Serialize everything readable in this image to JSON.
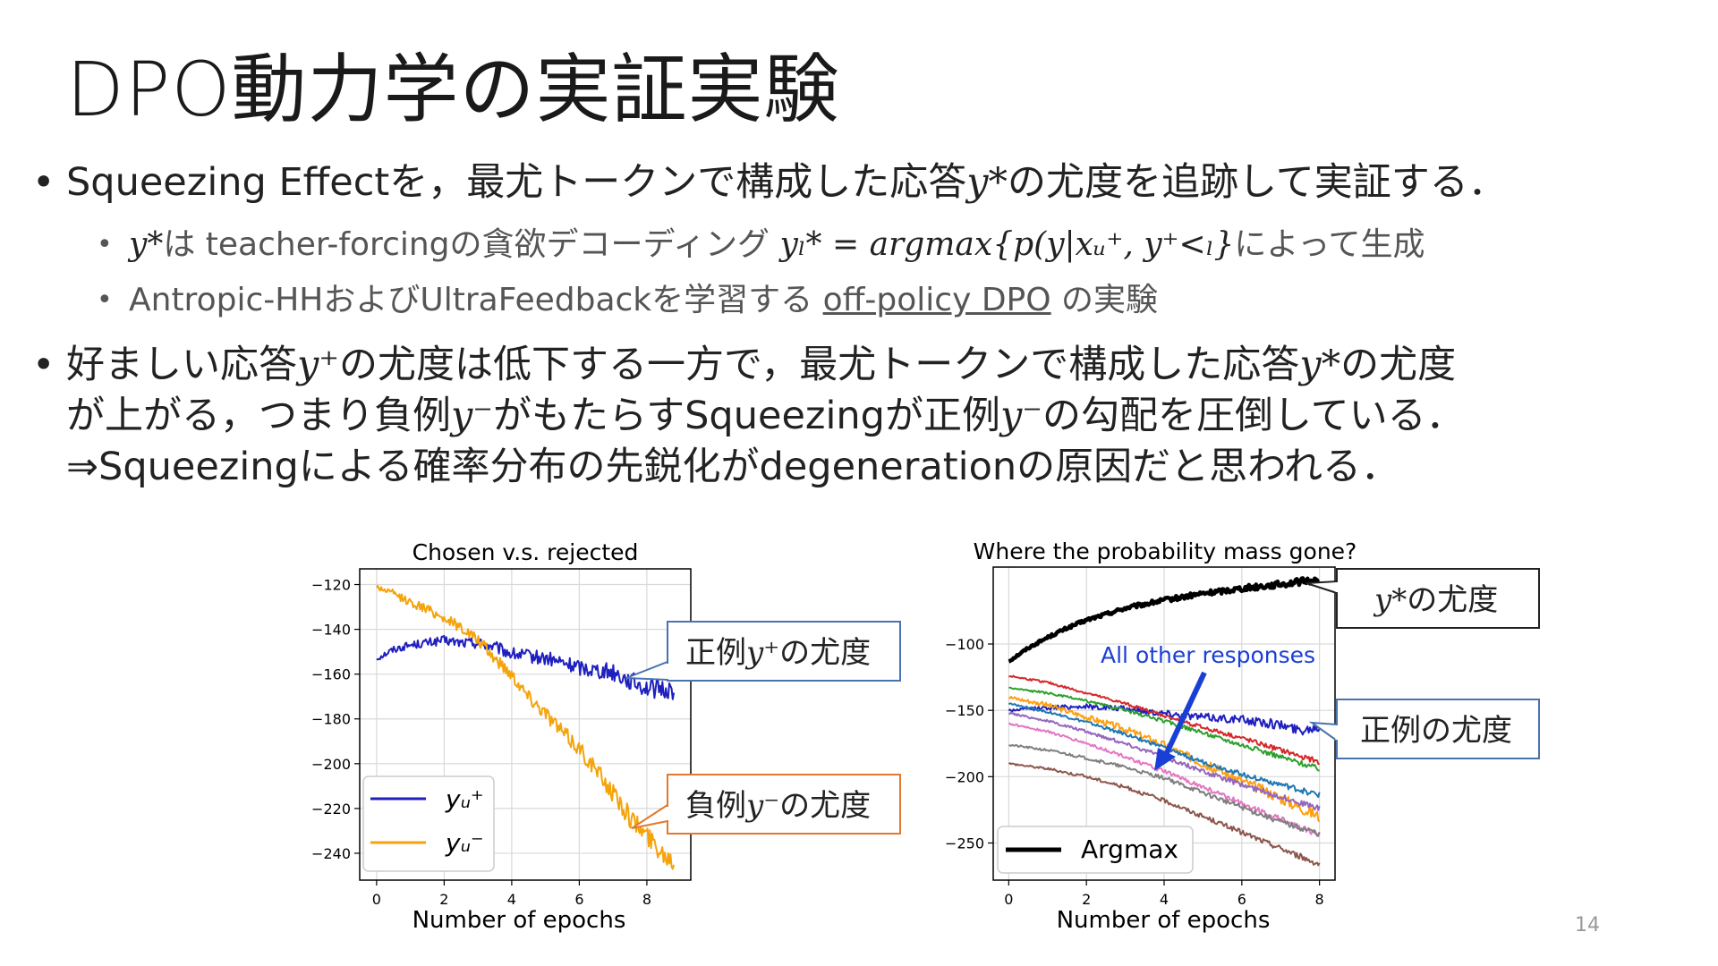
{
  "slide": {
    "title": "DPO動力学の実証実験",
    "bullet1": {
      "dot": "•",
      "text_a": "Squeezing Effectを，最尤トークンで構成した応答",
      "math": "y*",
      "text_b": "の尤度を追跡して実証する．"
    },
    "sub1": {
      "dot": "•",
      "math_a": "y*",
      "text_a": "は teacher-forcingの貪欲デコーディング ",
      "math_b": "yₗ* = argmax{p(y|xᵤ⁺, y⁺<ₗ}",
      "text_b": "によって生成"
    },
    "sub2": {
      "dot": "•",
      "text_a": "Antropic-HHおよびUltraFeedbackを学習する ",
      "link": "off-policy DPO",
      "text_b": " の実験"
    },
    "bullet2": {
      "dot": "•",
      "line1_a": "好ましい応答",
      "line1_math": "y⁺",
      "line1_b": "の尤度は低下する一方で，最尤トークンで構成した応答",
      "line1_math2": "y*",
      "line1_c": "の尤度",
      "line2_a": "が上がる，つまり負例",
      "line2_math": "y⁻",
      "line2_b": "がもたらすSqueezingが正例",
      "line2_math2": "y⁻",
      "line2_c": "の勾配を圧倒している．",
      "line3": "⇒Squeezingによる確率分布の先鋭化がdegenerationの原因だと思われる．"
    },
    "page_number": "14"
  },
  "chart_data": [
    {
      "type": "line",
      "title": "Chosen v.s. rejected",
      "xlabel": "Number of epochs",
      "ylabel": "",
      "xlim": [
        -0.5,
        9.3
      ],
      "ylim": [
        -252,
        -113
      ],
      "xticks": [
        0,
        2,
        4,
        6,
        8
      ],
      "yticks": [
        -120,
        -140,
        -160,
        -180,
        -200,
        -220,
        -240
      ],
      "grid": true,
      "legend_position": "bottom-left",
      "series": [
        {
          "name": "y_u^+",
          "legend_label": "yᵤ⁺",
          "color": "#1f1fbf",
          "x": [
            0,
            0.5,
            1,
            1.5,
            2,
            2.5,
            3,
            3.5,
            4,
            4.5,
            5,
            5.5,
            6,
            6.5,
            7,
            7.5,
            8,
            8.5,
            8.8
          ],
          "y": [
            -153,
            -149,
            -147,
            -146,
            -145,
            -146,
            -146,
            -148,
            -151,
            -152,
            -153,
            -155,
            -157,
            -158,
            -159,
            -163,
            -166,
            -167,
            -167
          ]
        },
        {
          "name": "y_u^-",
          "legend_label": "yᵤ⁻",
          "color": "#f5a30a",
          "x": [
            0,
            0.5,
            1,
            1.5,
            2,
            2.5,
            3,
            3.5,
            4,
            4.5,
            5,
            5.5,
            6,
            6.5,
            7,
            7.5,
            8,
            8.5,
            8.8
          ],
          "y": [
            -121,
            -124,
            -128,
            -131,
            -135,
            -139,
            -145,
            -153,
            -160,
            -170,
            -177,
            -186,
            -193,
            -203,
            -213,
            -224,
            -232,
            -240,
            -243
          ]
        }
      ],
      "callouts": [
        {
          "text_a": "正例",
          "math": "y⁺",
          "text_b": "の尤度",
          "border_color": "#4a72b0"
        },
        {
          "text_a": "負例",
          "math": "y⁻",
          "text_b": "の尤度",
          "border_color": "#e07a30"
        }
      ]
    },
    {
      "type": "line",
      "title": "Where the probability mass gone?",
      "xlabel": "Number of epochs",
      "ylabel": "",
      "xlim": [
        -0.4,
        8.4
      ],
      "ylim": [
        -278,
        -42
      ],
      "xticks": [
        0,
        2,
        4,
        6,
        8
      ],
      "yticks": [
        -100,
        -150,
        -200,
        -250
      ],
      "grid": true,
      "legend_position": "bottom-left",
      "annotation": {
        "text": "All other responses",
        "color": "#1a3fd6"
      },
      "series": [
        {
          "name": "Argmax",
          "legend_label": "Argmax",
          "color": "#000000",
          "width": 4.5,
          "x": [
            0,
            0.5,
            1,
            1.5,
            2,
            3,
            4,
            5,
            6,
            7,
            7.5,
            8
          ],
          "y": [
            -113,
            -103,
            -95,
            -88,
            -82,
            -73,
            -67,
            -62,
            -58,
            -55,
            -53,
            -52
          ]
        },
        {
          "name": "chosen",
          "color": "#1f1fbf",
          "width": 2,
          "x": [
            0,
            1,
            2,
            3,
            4,
            5,
            6,
            7,
            7.5,
            8
          ],
          "y": [
            -150,
            -148,
            -147,
            -149,
            -152,
            -155,
            -157,
            -161,
            -165,
            -162
          ]
        },
        {
          "name": "red",
          "color": "#d62728",
          "width": 2,
          "x": [
            0,
            1,
            2,
            3,
            4,
            5,
            6,
            7,
            8
          ],
          "y": [
            -124,
            -129,
            -137,
            -145,
            -154,
            -163,
            -171,
            -180,
            -189
          ]
        },
        {
          "name": "green",
          "color": "#2ca02c",
          "width": 2,
          "x": [
            0,
            1,
            2,
            3,
            4,
            5,
            6,
            7,
            8
          ],
          "y": [
            -133,
            -137,
            -143,
            -150,
            -158,
            -167,
            -176,
            -185,
            -194
          ]
        },
        {
          "name": "orange",
          "color": "#ff9f10",
          "width": 2,
          "x": [
            0,
            1,
            2,
            3,
            4,
            5,
            6,
            7,
            8
          ],
          "y": [
            -140,
            -146,
            -155,
            -164,
            -176,
            -190,
            -203,
            -216,
            -230
          ]
        },
        {
          "name": "blue",
          "color": "#1f77b4",
          "width": 2,
          "x": [
            0,
            1,
            2,
            3,
            4,
            5,
            6,
            7,
            8
          ],
          "y": [
            -145,
            -151,
            -159,
            -168,
            -178,
            -189,
            -198,
            -206,
            -214
          ]
        },
        {
          "name": "purple",
          "color": "#9467bd",
          "width": 2,
          "x": [
            0,
            1,
            2,
            3,
            4,
            5,
            6,
            7,
            8
          ],
          "y": [
            -152,
            -158,
            -166,
            -175,
            -185,
            -196,
            -206,
            -215,
            -224
          ]
        },
        {
          "name": "pink",
          "color": "#e377c2",
          "width": 2,
          "x": [
            0,
            1,
            2,
            3,
            4,
            5,
            6,
            7,
            8
          ],
          "y": [
            -160,
            -166,
            -175,
            -185,
            -196,
            -208,
            -220,
            -232,
            -244
          ]
        },
        {
          "name": "gray",
          "color": "#7f7f7f",
          "width": 2,
          "x": [
            0,
            1,
            2,
            3,
            4,
            5,
            6,
            7,
            8
          ],
          "y": [
            -176,
            -180,
            -186,
            -193,
            -201,
            -212,
            -223,
            -234,
            -243
          ]
        },
        {
          "name": "brown",
          "color": "#8c564b",
          "width": 2,
          "x": [
            0,
            1,
            2,
            3,
            4,
            5,
            6,
            7,
            8
          ],
          "y": [
            -190,
            -194,
            -200,
            -208,
            -218,
            -230,
            -242,
            -254,
            -266
          ]
        }
      ],
      "callouts": [
        {
          "math": "y*",
          "text_b": "の尤度",
          "border_color": "#222222"
        },
        {
          "text_a": "正例の尤度",
          "border_color": "#4a72b0"
        }
      ]
    }
  ]
}
